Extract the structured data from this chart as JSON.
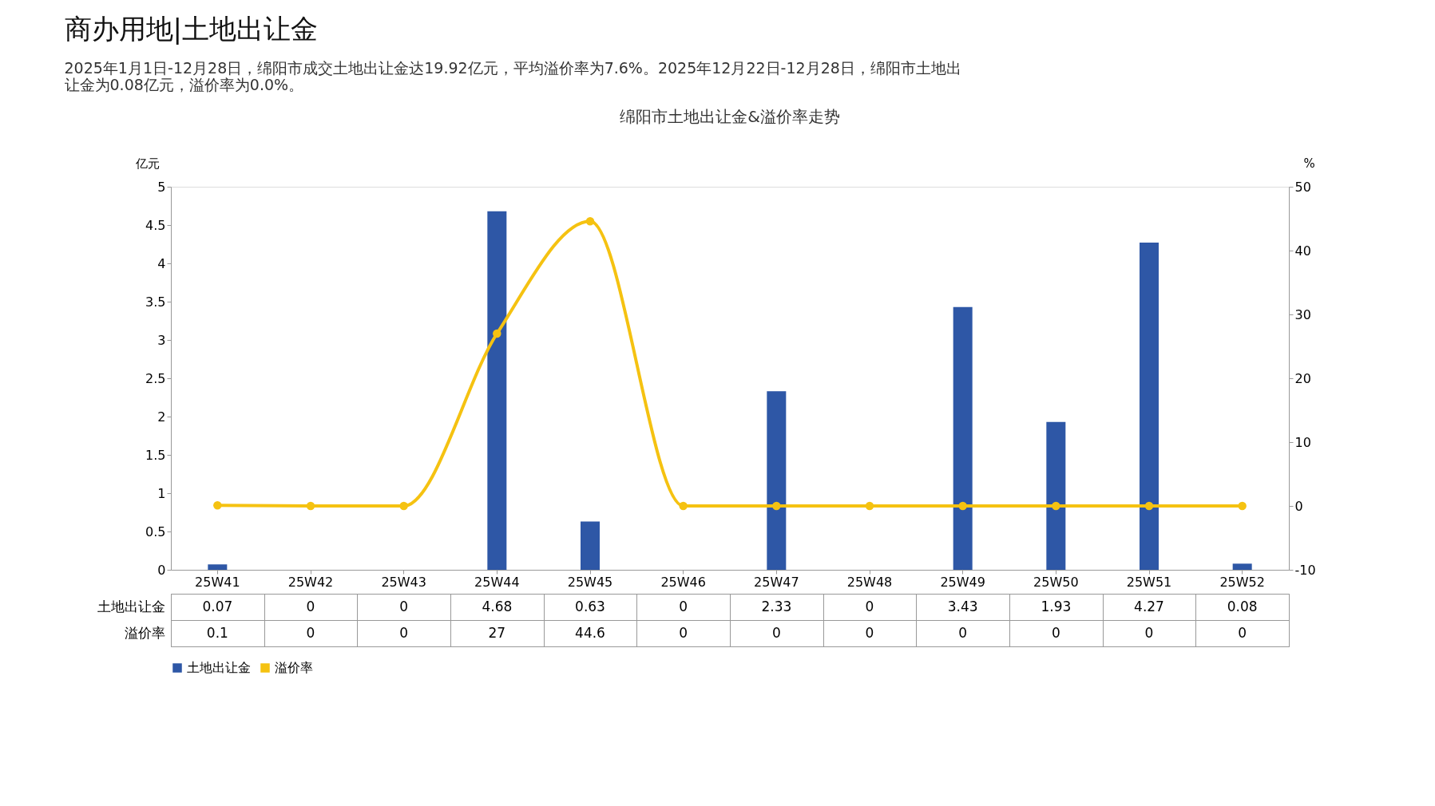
{
  "chart_data": {
    "type": "bar",
    "title": "绵阳市土地出让金&溢价率走势",
    "annotations": [
      "商办用地|土地出让金",
      "2025年1月1日-12月28日，绵阳市成交土地出让金达19.92亿元，平均溢价率为7.6%。2025年12月22日-12月28日，绵阳市土地出让金为0.08亿元，溢价率为0.0%。"
    ],
    "ylabel": "亿元",
    "y2label": "%",
    "categories": [
      "25W41",
      "25W42",
      "25W43",
      "25W44",
      "25W45",
      "25W46",
      "25W47",
      "25W48",
      "25W49",
      "25W50",
      "25W51",
      "25W52"
    ],
    "series": [
      {
        "name": "土地出让金",
        "color": "#2e57a6",
        "values": [
          0.07,
          0,
          0,
          4.68,
          0.63,
          0,
          2.33,
          0,
          3.43,
          1.93,
          4.27,
          0.08
        ]
      },
      {
        "name": "溢价率",
        "type": "line",
        "axis": "y2",
        "color": "#f5c211",
        "marker": "circle",
        "values": [
          0.1,
          0,
          0,
          27,
          44.6,
          0,
          0,
          0,
          0,
          0,
          0,
          0
        ]
      }
    ],
    "ylim": [
      0,
      5
    ],
    "yticks": [
      0,
      0.5,
      1,
      1.5,
      2,
      2.5,
      3,
      3.5,
      4,
      4.5,
      5
    ],
    "y2lim": [
      -10,
      50
    ],
    "y2ticks": [
      -10,
      0,
      10,
      20,
      30,
      40,
      50
    ],
    "data_labels": true,
    "grid": false,
    "legend": "bottom"
  }
}
